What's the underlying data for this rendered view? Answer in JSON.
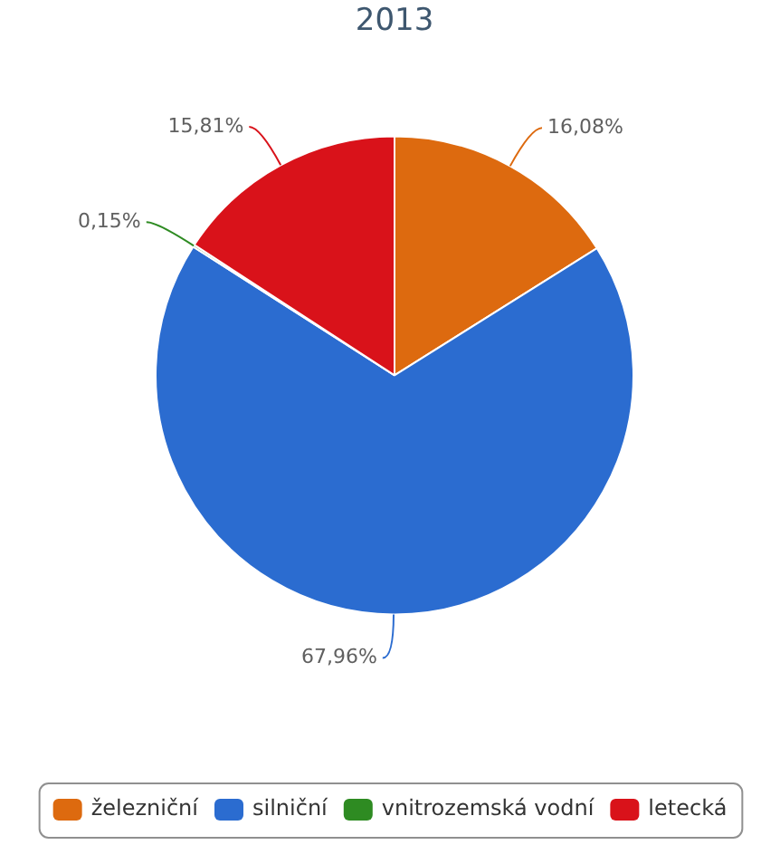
{
  "chart_data": {
    "type": "pie",
    "title": "2013",
    "categories": [
      "železniční",
      "silniční",
      "vnitrozemská vodní",
      "letecká"
    ],
    "values": [
      16.08,
      67.96,
      0.15,
      15.81
    ],
    "colors": [
      "#dd6a0f",
      "#2b6cd0",
      "#2e8b22",
      "#d9121a"
    ],
    "value_labels": [
      "16,08%",
      "67,96%",
      "0,15%",
      "15,81%"
    ],
    "legend": "bottom"
  }
}
